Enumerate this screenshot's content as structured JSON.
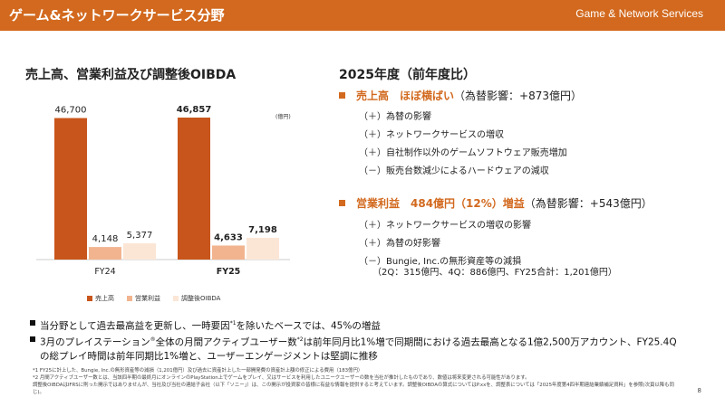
{
  "header": {
    "title": "ゲーム&ネットワークサービス分野",
    "subtitle": "Game  & Network Services"
  },
  "left": {
    "title": "売上高、営業利益及び調整後OIBDA",
    "unit": "(億円)"
  },
  "colors": {
    "accent": "#d2691e",
    "sales": "#c8551b",
    "op": "#f2b48f",
    "oibda": "#fbe6d6"
  },
  "chart_data": {
    "type": "bar",
    "categories": [
      "FY24",
      "FY25"
    ],
    "series": [
      {
        "name": "売上高",
        "values": [
          46700,
          46857
        ],
        "labels": [
          "46,700",
          "46,857"
        ]
      },
      {
        "name": "営業利益",
        "values": [
          4148,
          4633
        ],
        "labels": [
          "4,148",
          "4,633"
        ]
      },
      {
        "name": "調整後OIBDA",
        "values": [
          5377,
          7198
        ],
        "labels": [
          "5,377",
          "7,198"
        ]
      }
    ],
    "emphasis_category": "FY25"
  },
  "right": {
    "title": "2025年度（前年度比）",
    "sec1": {
      "head": "売上高　ほぼ横ばい",
      "tail": "（為替影響：+873億円）"
    },
    "sec1_items": [
      "（＋）為替の影響",
      "（＋）ネットワークサービスの増収",
      "（＋）自社制作以外のゲームソフトウェア販売増加",
      "（－）販売台数減少によるハードウェアの減収"
    ],
    "sec2": {
      "head": "営業利益　484億円（12%）増益",
      "tail": "（為替影響：+543億円）"
    },
    "sec2_items": [
      "（＋）ネットワークサービスの増収の影響",
      "（＋）為替の好影響",
      "（－）Bungie, Inc.の無形資産等の減損",
      "　　（2Q：315億円、4Q：886億円、FY25合計：1,201億円）"
    ]
  },
  "notes": {
    "n1": "当分野として過去最高益を更新し、一時要因",
    "n1_sup": "*1",
    "n1_tail": "を除いたベースでは、45%の増益",
    "n2a": "3月のプレイステーション",
    "n2_reg": "®",
    "n2b": "全体の月間アクティブユーザー数",
    "n2_sup": "*2",
    "n2c": "は前年同月比1%増で同期間における過去最高となる1億2,500万アカウント、FY25.4Qの総プレイ時間は前年同期比1%増と、ユーザーエンゲージメントは堅調に推移"
  },
  "footnotes": [
    "*1  FY25に計上した、Bungie, Inc.の無形資産等の減損（1,201億円）及び過去に資産計上した一部開発費の資産計上額の修正による費用（183億円）",
    "*2  月間アクティブユーザー数とは、当該四半期の最終月にオンラインのPlayStation上でゲームをプレイ、又はサービスを利用したユニークユーザーの数を当社が推計したものであり、数値は将来変更される可能性があります。",
    "調整後OIBDAはIFRSに則った開示ではありませんが、当社及び当社の連結子会社（以下「ソニー」）は、この開示が投資家の皆様に有益な情報を提供すると考えています。調整後OIBDAの算式についてはP.xxを、調整表については「2025年度第4四半期連結業績補足資料」を参照(次頁以降も同じ)。"
  ],
  "page_number": "8"
}
